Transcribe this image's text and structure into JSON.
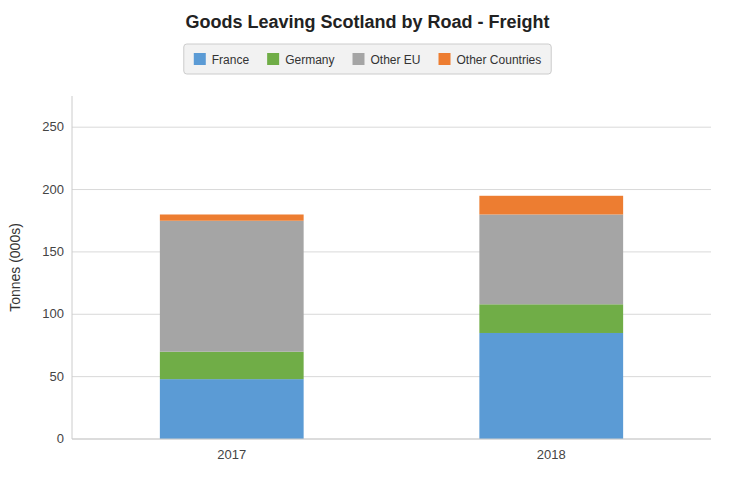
{
  "chart_data": {
    "type": "bar",
    "stacked": true,
    "title": "Goods Leaving Scotland by Road - Freight",
    "ylabel": "Tonnes (000s)",
    "categories": [
      "2017",
      "2018"
    ],
    "series": [
      {
        "name": "France",
        "color": "#5B9BD5",
        "values": [
          48,
          85
        ]
      },
      {
        "name": "Germany",
        "color": "#70AD47",
        "values": [
          22,
          23
        ]
      },
      {
        "name": "Other EU",
        "color": "#A5A5A5",
        "values": [
          105,
          72
        ]
      },
      {
        "name": "Other Countries",
        "color": "#ED7D31",
        "values": [
          5,
          15
        ]
      }
    ],
    "ylim": [
      0,
      275
    ],
    "yticks": [
      0,
      50,
      100,
      150,
      200,
      250
    ],
    "grid": true,
    "legend": "top"
  }
}
